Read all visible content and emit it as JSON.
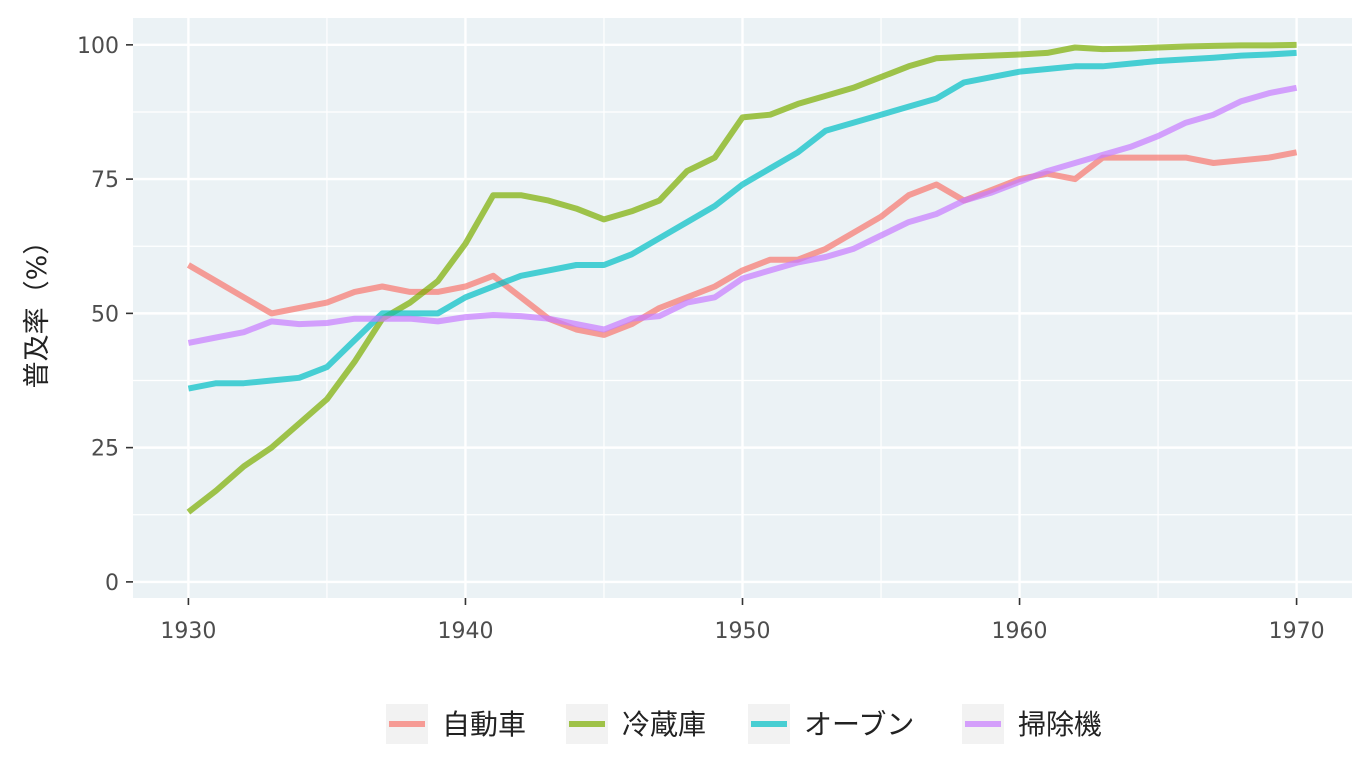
{
  "chart_data": {
    "type": "line",
    "title": "",
    "xlabel": "",
    "ylabel": "普及率（%）",
    "xlim": [
      1928,
      1972
    ],
    "ylim": [
      -3,
      105
    ],
    "xticks": [
      "1930",
      "1940",
      "1950",
      "1960",
      "1970"
    ],
    "yticks": [
      "0",
      "25",
      "50",
      "75",
      "100"
    ],
    "grid": true,
    "legend_position": "bottom",
    "x": [
      1930,
      1931,
      1932,
      1933,
      1934,
      1935,
      1936,
      1937,
      1938,
      1939,
      1940,
      1941,
      1942,
      1943,
      1944,
      1945,
      1946,
      1947,
      1948,
      1949,
      1950,
      1951,
      1952,
      1953,
      1954,
      1955,
      1956,
      1957,
      1958,
      1959,
      1960,
      1961,
      1962,
      1963,
      1964,
      1965,
      1966,
      1967,
      1968,
      1969,
      1970
    ],
    "series": [
      {
        "name": "自動車",
        "color": "#F8766D",
        "values": [
          59,
          56,
          53,
          50,
          51,
          52,
          54,
          55,
          54,
          54,
          55,
          57,
          53,
          49,
          47,
          46,
          48,
          51,
          53,
          55,
          58,
          60,
          60,
          62,
          65,
          68,
          72,
          74,
          71,
          73,
          75,
          76,
          75,
          79,
          79,
          79,
          79,
          78,
          78.5,
          79,
          80
        ]
      },
      {
        "name": "冷蔵庫",
        "color": "#7CAE00",
        "values": [
          13,
          17,
          21.5,
          25,
          29.5,
          34,
          41,
          49,
          52,
          56,
          63,
          72,
          72,
          71,
          69.5,
          67.5,
          69,
          71,
          76.5,
          79,
          86.5,
          87,
          89,
          90.5,
          92,
          94,
          96,
          97.5,
          97.8,
          98,
          98.2,
          98.5,
          99.5,
          99.2,
          99.3,
          99.5,
          99.7,
          99.8,
          99.9,
          99.9,
          100
        ]
      },
      {
        "name": "オーブン",
        "color": "#00BFC4",
        "values": [
          36,
          37,
          37,
          37.5,
          38,
          40,
          45,
          50,
          50,
          50,
          53,
          55,
          57,
          58,
          59,
          59,
          61,
          64,
          67,
          70,
          74,
          77,
          80,
          84,
          85.5,
          87,
          88.5,
          90,
          93,
          94,
          95,
          95.5,
          96,
          96,
          96.5,
          97,
          97.3,
          97.6,
          98,
          98.2,
          98.5
        ]
      },
      {
        "name": "掃除機",
        "color": "#C77CFF",
        "values": [
          44.5,
          45.5,
          46.5,
          48.5,
          48,
          48.2,
          49,
          49,
          49,
          48.5,
          49.3,
          49.7,
          49.5,
          49,
          48,
          47,
          49,
          49.5,
          52,
          53,
          56.5,
          58,
          59.5,
          60.5,
          62,
          64.5,
          67,
          68.5,
          71,
          72.5,
          74.5,
          76.5,
          78,
          79.5,
          81,
          83,
          85.5,
          87,
          89.5,
          91,
          92
        ]
      }
    ]
  }
}
